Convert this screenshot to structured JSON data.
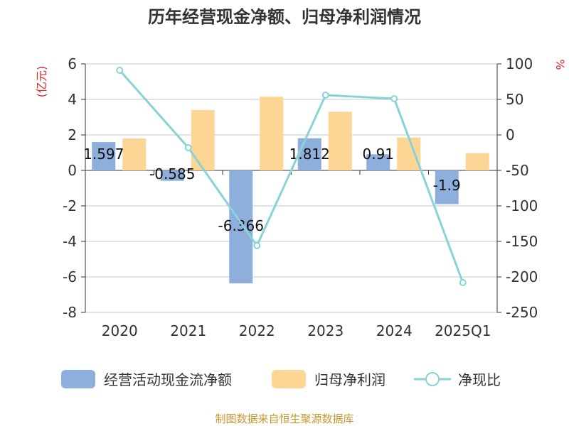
{
  "title": "历年经营现金净额、归母净利润情况",
  "left_unit": "(亿元)",
  "right_unit": "%",
  "source": "制图数据来自恒生聚源数据库",
  "colors": {
    "cash_flow": "#8eaedc",
    "net_profit": "#fdd595",
    "net_ratio": "#88d3d8",
    "axis": "#333333",
    "grid": "#c8c8c8",
    "unit": "#e0262a",
    "source": "#c8962f"
  },
  "legend": [
    {
      "label": "经营活动现金流净额",
      "type": "bar",
      "color": "#8eaedc"
    },
    {
      "label": "归母净利润",
      "type": "bar",
      "color": "#fdd595"
    },
    {
      "label": "净现比",
      "type": "line",
      "color": "#88d3d8"
    }
  ],
  "chart_data": {
    "type": "bar",
    "title": "历年经营现金净额、归母净利润情况",
    "categories": [
      "2020",
      "2021",
      "2022",
      "2023",
      "2024",
      "2025Q1"
    ],
    "left_axis": {
      "label": "(亿元)",
      "ylim": [
        -8,
        6
      ],
      "ticks": [
        "6",
        "4",
        "2",
        "0",
        "-2",
        "-4",
        "-6",
        "-8"
      ]
    },
    "right_axis": {
      "label": "%",
      "ylim": [
        -250,
        100
      ],
      "ticks": [
        "100",
        "50",
        "0",
        "-50",
        "-100",
        "-150",
        "-200",
        "-250"
      ]
    },
    "grid": true,
    "legend_position": "bottom",
    "series": [
      {
        "name": "经营活动现金流净额",
        "type": "bar",
        "axis": "left",
        "values": [
          1.597,
          -0.585,
          -6.366,
          1.812,
          0.91,
          -1.9
        ],
        "labels": [
          "1.597",
          "-0.585",
          "-6.366",
          "1.812",
          "0.91",
          "-1.9"
        ]
      },
      {
        "name": "归母净利润",
        "type": "bar",
        "axis": "left",
        "values": [
          1.8,
          3.4,
          4.15,
          3.3,
          1.85,
          0.97
        ]
      },
      {
        "name": "净现比",
        "type": "line",
        "axis": "right",
        "values": [
          91,
          -18,
          -156,
          56,
          51,
          -208
        ]
      }
    ]
  }
}
